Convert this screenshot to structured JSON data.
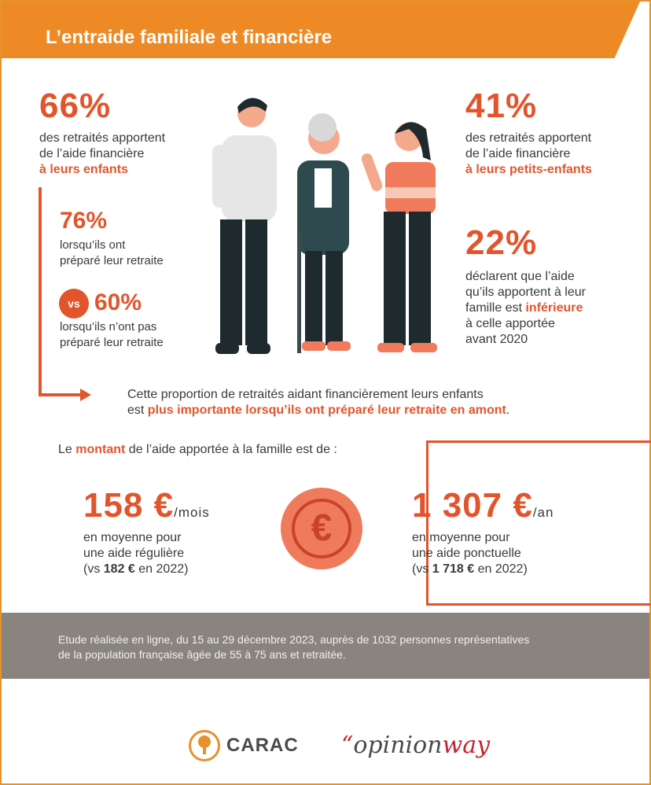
{
  "header": {
    "title": "L’entraide familiale et financière"
  },
  "left": {
    "stat_main": "66%",
    "stat_main_line1": "des retraités apportent",
    "stat_main_line2": "de l’aide financière",
    "stat_main_highlight": "à leurs enfants",
    "stat_prepared": "76%",
    "stat_prepared_line1": "lorsqu’ils ont",
    "stat_prepared_line2": "préparé leur retraite",
    "vs_label": "vs",
    "stat_unprepared": "60%",
    "stat_unprepared_line1": "lorsqu’ils n’ont pas",
    "stat_unprepared_line2": "préparé leur retraite"
  },
  "right": {
    "stat_grand": "41%",
    "stat_grand_line1": "des retraités apportent",
    "stat_grand_line2": "de l’aide financière",
    "stat_grand_highlight": "à leurs petits-enfants",
    "stat_less": "22%",
    "stat_less_line1": "déclarent que l’aide",
    "stat_less_line2": "qu’ils apportent à leur",
    "stat_less_line3a": "famille est ",
    "stat_less_line3b": "inférieure",
    "stat_less_line4": "à celle apportée",
    "stat_less_line5": "avant 2020"
  },
  "conclusion": {
    "line1": "Cette proportion de retraités aidant financièrement leurs enfants",
    "line2a": "est ",
    "line2b": "plus importante lorsqu’ils ont préparé leur retraite en amont",
    "line2c": "."
  },
  "amount": {
    "intro_a": "Le ",
    "intro_b": "montant",
    "intro_c": " de l’aide apportée à la famille est de :",
    "monthly_value": "158 €",
    "monthly_unit": "/mois",
    "monthly_line1": "en moyenne pour",
    "monthly_line2": "une aide régulière",
    "monthly_vs_a": "(vs ",
    "monthly_vs_b": "182 €",
    "monthly_vs_c": " en 2022)",
    "coin_symbol": "€",
    "yearly_value": "1 307 €",
    "yearly_unit": "/an",
    "yearly_line1": "en moyenne pour",
    "yearly_line2": "une aide ponctuelle",
    "yearly_vs_a": "(vs ",
    "yearly_vs_b": "1 718 €",
    "yearly_vs_c": " en 2022)"
  },
  "footer": {
    "line1": "Etude réalisée en ligne, du 15 au 29 décembre 2023, auprès de 1032 personnes représentatives",
    "line2": "de la population française âgée de 55 à 75 ans et retraitée."
  },
  "logos": {
    "carac": "CARAC",
    "opinion_quote": "“",
    "opinion": "opinion",
    "way": "way"
  },
  "colors": {
    "accent": "#e2552c",
    "banner": "#ee8a25",
    "footer_band": "#8a847f"
  },
  "icons": [
    "family-illustration",
    "euro-coin-icon",
    "carac-tree-logo",
    "arrow-right-icon"
  ]
}
